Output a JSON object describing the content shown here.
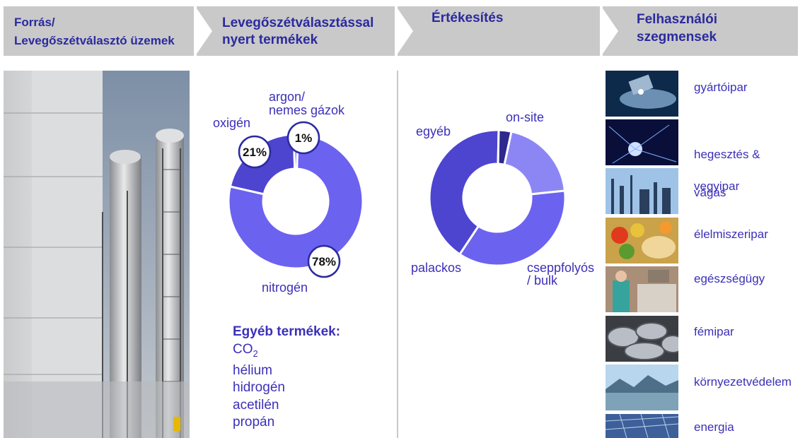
{
  "header": {
    "col1_line1": "Forrás/",
    "col1_line2": "Levegőszétválasztó üzemek",
    "col2_line1": "Levegőszétválasztással",
    "col2_line2": "nyert termékek",
    "col3": "Értékesítés",
    "col4_line1": "Felhasználói",
    "col4_line2": "szegmensek"
  },
  "colors": {
    "header_bg": "#c9c9c9",
    "text": "#3b30b8",
    "donut_light": "#6b62f0",
    "donut_dark": "#4d45cf",
    "donut_darkest": "#2e288f",
    "donut_pale": "#8c86f5"
  },
  "products": {
    "labels": {
      "argon_1": "argon/",
      "argon_2": "nemes gázok",
      "oxygen": "oxigén",
      "nitrogen": "nitrogén"
    },
    "badges": {
      "argon": "1%",
      "oxygen": "21%",
      "nitrogen": "78%"
    }
  },
  "other_products": {
    "title": "Egyéb termékek:",
    "co2": "CO",
    "co2_sub": "2",
    "items": [
      "hélium",
      "hidrogén",
      "acetilén",
      "propán"
    ]
  },
  "sales": {
    "labels": {
      "onsite": "on-site",
      "egyeb": "egyéb",
      "palackos": "palackos",
      "bulk_1": "cseppfolyós",
      "bulk_2": "/ bulk"
    }
  },
  "chart_data": [
    {
      "type": "pie",
      "title": "",
      "categories": [
        "nitrogén",
        "oxigén",
        "argon/nemes gázok"
      ],
      "values": [
        78,
        21,
        1
      ]
    },
    {
      "type": "pie",
      "title": "",
      "categories": [
        "on-site",
        "cseppfolyós / bulk",
        "palackos",
        "egyéb"
      ],
      "values": [
        20,
        36,
        41,
        3
      ]
    }
  ],
  "segments": [
    "gyártóipar",
    "hegesztés &\nvágás",
    "vegyipar",
    "élelmiszeripar",
    "egészségügy",
    "fémipar",
    "környezetvédelem",
    "energia"
  ],
  "segment_icons": [
    "machining-photo",
    "welding-photo",
    "chemical-plant-photo",
    "food-photo",
    "healthcare-photo",
    "steel-coils-photo",
    "lake-landscape-photo",
    "solar-panel-photo"
  ]
}
